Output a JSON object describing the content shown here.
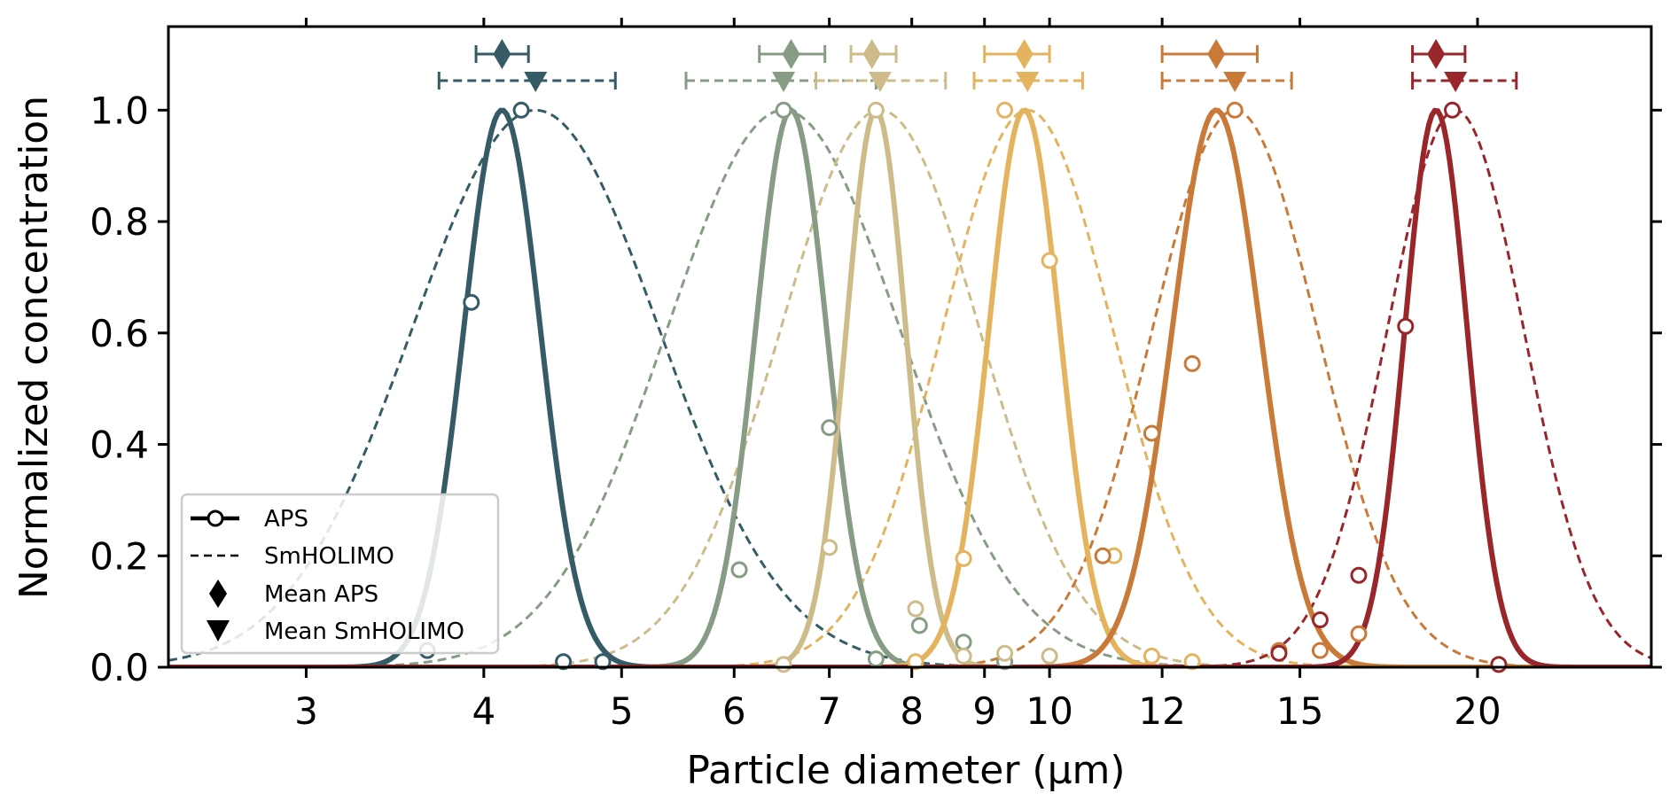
{
  "chart_data": {
    "type": "line",
    "title": "",
    "xlabel": "Particle diameter (µm)",
    "ylabel": "Normalized concentration",
    "xscale": "log",
    "xlim": [
      2.4,
      26.5
    ],
    "ylim": [
      0,
      1.15
    ],
    "xticks": [
      {
        "value": 3,
        "label": "3"
      },
      {
        "value": 4,
        "label": "4"
      },
      {
        "value": 5,
        "label": "5"
      },
      {
        "value": 6,
        "label": "6"
      },
      {
        "value": 7,
        "label": "7"
      },
      {
        "value": 8,
        "label": "8"
      },
      {
        "value": 9,
        "label": "9"
      },
      {
        "value": 10,
        "label": "10"
      },
      {
        "value": 12,
        "label": "12"
      },
      {
        "value": 15,
        "label": "15"
      },
      {
        "value": 20,
        "label": "20"
      }
    ],
    "yticks": [
      {
        "value": 0.0,
        "label": "0.0"
      },
      {
        "value": 0.2,
        "label": "0.2"
      },
      {
        "value": 0.4,
        "label": "0.4"
      },
      {
        "value": 0.6,
        "label": "0.6"
      },
      {
        "value": 0.8,
        "label": "0.8"
      },
      {
        "value": 1.0,
        "label": "1.0"
      }
    ],
    "grid": false,
    "legend": {
      "placement": "lower-left",
      "entries": [
        {
          "label": "APS",
          "marker": "line-circle"
        },
        {
          "label": "SmHOLIMO",
          "marker": "dashed-line"
        },
        {
          "label": "Mean APS",
          "marker": "diamond"
        },
        {
          "label": "Mean SmHOLIMO",
          "marker": "triangle-down"
        }
      ]
    },
    "series": [
      {
        "color": "#355c66",
        "aps_fit": {
          "peak": 4.12,
          "width_log10": 0.027
        },
        "smholimo_fit": {
          "peak": 4.35,
          "width_log10": 0.087
        },
        "aps_points": [
          [
            3.65,
            0.03
          ],
          [
            3.92,
            0.655
          ],
          [
            4.25,
            1.0
          ],
          [
            4.55,
            0.01
          ],
          [
            4.85,
            0.01
          ]
        ],
        "mean_aps": {
          "value": 4.12,
          "low": 3.95,
          "high": 4.3
        },
        "mean_smholimo": {
          "value": 4.35,
          "low": 3.72,
          "high": 4.95
        }
      },
      {
        "color": "#879c84",
        "aps_fit": {
          "peak": 6.58,
          "width_log10": 0.025
        },
        "smholimo_fit": {
          "peak": 6.5,
          "width_log10": 0.082
        },
        "aps_points": [
          [
            6.05,
            0.175
          ],
          [
            6.5,
            1.0
          ],
          [
            7.0,
            0.43
          ],
          [
            7.55,
            0.015
          ],
          [
            8.1,
            0.075
          ],
          [
            8.7,
            0.045
          ],
          [
            9.3,
            0.01
          ]
        ],
        "mean_aps": {
          "value": 6.58,
          "low": 6.25,
          "high": 6.95
        },
        "mean_smholimo": {
          "value": 6.5,
          "low": 5.55,
          "high": 7.55
        }
      },
      {
        "color": "#cdbb8a",
        "aps_fit": {
          "peak": 7.55,
          "width_log10": 0.021
        },
        "smholimo_fit": {
          "peak": 7.6,
          "width_log10": 0.07
        },
        "aps_points": [
          [
            6.5,
            0.005
          ],
          [
            7.0,
            0.215
          ],
          [
            7.55,
            1.0
          ],
          [
            8.05,
            0.105
          ],
          [
            8.7,
            0.02
          ],
          [
            9.3,
            0.025
          ],
          [
            10.0,
            0.02
          ]
        ],
        "mean_aps": {
          "value": 7.5,
          "low": 7.25,
          "high": 7.8
        },
        "mean_smholimo": {
          "value": 7.6,
          "low": 6.85,
          "high": 8.45
        }
      },
      {
        "color": "#e3b35e",
        "aps_fit": {
          "peak": 9.6,
          "width_log10": 0.025
        },
        "smholimo_fit": {
          "peak": 9.65,
          "width_log10": 0.06
        },
        "aps_points": [
          [
            8.05,
            0.01
          ],
          [
            8.7,
            0.195
          ],
          [
            9.3,
            1.0
          ],
          [
            10.0,
            0.73
          ],
          [
            11.1,
            0.2
          ],
          [
            11.8,
            0.02
          ],
          [
            12.6,
            0.01
          ]
        ],
        "mean_aps": {
          "value": 9.6,
          "low": 9.0,
          "high": 10.0
        },
        "mean_smholimo": {
          "value": 9.65,
          "low": 8.85,
          "high": 10.55
        }
      },
      {
        "color": "#c97a38",
        "aps_fit": {
          "peak": 13.1,
          "width_log10": 0.031
        },
        "smholimo_fit": {
          "peak": 13.5,
          "width_log10": 0.058
        },
        "aps_points": [
          [
            10.9,
            0.2
          ],
          [
            11.8,
            0.42
          ],
          [
            12.6,
            0.545
          ],
          [
            13.5,
            1.0
          ],
          [
            14.5,
            0.03
          ],
          [
            15.5,
            0.03
          ],
          [
            16.5,
            0.06
          ]
        ],
        "mean_aps": {
          "value": 13.1,
          "low": 12.0,
          "high": 14.0
        },
        "mean_smholimo": {
          "value": 13.5,
          "low": 12.0,
          "high": 14.8
        }
      },
      {
        "color": "#98262a",
        "aps_fit": {
          "peak": 18.7,
          "width_log10": 0.022
        },
        "smholimo_fit": {
          "peak": 19.3,
          "width_log10": 0.048
        },
        "aps_points": [
          [
            14.5,
            0.025
          ],
          [
            15.5,
            0.085
          ],
          [
            16.5,
            0.165
          ],
          [
            17.8,
            0.612
          ],
          [
            19.2,
            1.0
          ],
          [
            20.7,
            0.005
          ]
        ],
        "mean_aps": {
          "value": 18.7,
          "low": 18.0,
          "high": 19.6
        },
        "mean_smholimo": {
          "value": 19.3,
          "low": 18.0,
          "high": 21.3
        }
      }
    ]
  }
}
